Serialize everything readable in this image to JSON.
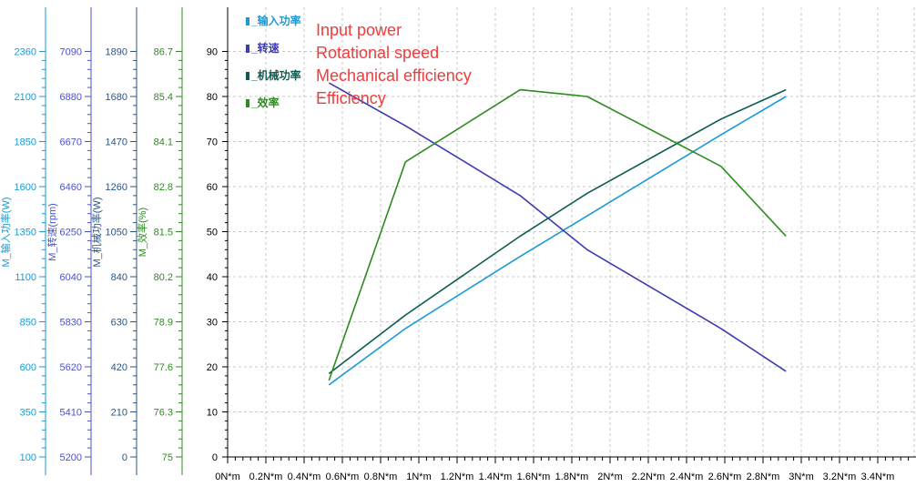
{
  "chart_data": {
    "type": "line",
    "x_ticks": [
      "0N*m",
      "0.2N*m",
      "0.4N*m",
      "0.6N*m",
      "0.8N*m",
      "1N*m",
      "1.2N*m",
      "1.4N*m",
      "1.6N*m",
      "1.8N*m",
      "2N*m",
      "2.2N*m",
      "2.4N*m",
      "2.6N*m",
      "2.8N*m",
      "3N*m",
      "3.2N*m",
      "3.4N*m"
    ],
    "xlim": [
      0,
      3.55
    ],
    "ylim_main": [
      0,
      95
    ],
    "main_y_ticks": [
      "0",
      "10",
      "20",
      "30",
      "40",
      "50",
      "60",
      "70",
      "80",
      "90"
    ],
    "grid": true,
    "axes": [
      {
        "id": "power",
        "label": "M_输入功率(W)",
        "color": "#1a9ad6",
        "ticks": [
          "100",
          "350",
          "600",
          "850",
          "1100",
          "1350",
          "1600",
          "1850",
          "2100",
          "2360"
        ]
      },
      {
        "id": "speed",
        "label": "M_转速(rpm)",
        "color": "#4b52c8",
        "ticks": [
          "5200",
          "5410",
          "5620",
          "5830",
          "6040",
          "6250",
          "6460",
          "6670",
          "6880",
          "7090"
        ]
      },
      {
        "id": "mech",
        "label": "M_机械功率(W)",
        "color": "#2b5580",
        "ticks": [
          "0",
          "210",
          "420",
          "630",
          "840",
          "1050",
          "1260",
          "1470",
          "1680",
          "1890"
        ]
      },
      {
        "id": "eff",
        "label": "M_效率(%)",
        "color": "#2e8b20",
        "ticks": [
          "75",
          "76.3",
          "77.6",
          "78.9",
          "80.2",
          "81.5",
          "82.8",
          "84.1",
          "85.4",
          "86.7"
        ]
      }
    ],
    "legend": [
      {
        "label": "M_输入功率",
        "color": "#1a9ad6"
      },
      {
        "label": "M_转速",
        "color": "#3c3cb0"
      },
      {
        "label": "M_机械功率",
        "color": "#0d5b52"
      },
      {
        "label": "M_效率",
        "color": "#2e8b20"
      }
    ],
    "annotations": [
      "Input power",
      "Rotational speed",
      "Mechanical efficiency",
      "Efficiency"
    ],
    "series": [
      {
        "name": "M_输入功率",
        "color": "#1a9ad6",
        "x": [
          0.53,
          0.93,
          1.53,
          1.88,
          2.58,
          2.92
        ],
        "y": [
          16,
          28.5,
          44.5,
          53.5,
          71.5,
          80
        ]
      },
      {
        "name": "M_转速",
        "color": "#3c3cb0",
        "x": [
          0.53,
          0.93,
          1.53,
          1.88,
          2.58,
          2.92
        ],
        "y": [
          83,
          73.5,
          58,
          46,
          28.5,
          19
        ]
      },
      {
        "name": "M_机械功率",
        "color": "#0d5b52",
        "x": [
          0.53,
          0.93,
          1.53,
          1.88,
          2.58,
          2.92
        ],
        "y": [
          18.5,
          31.5,
          49,
          58.5,
          75,
          81.5
        ]
      },
      {
        "name": "M_效率",
        "color": "#2e8b20",
        "x": [
          0.53,
          0.93,
          1.53,
          1.88,
          2.58,
          2.92
        ],
        "y": [
          17,
          65.5,
          81.5,
          80,
          64.5,
          49
        ]
      }
    ]
  }
}
